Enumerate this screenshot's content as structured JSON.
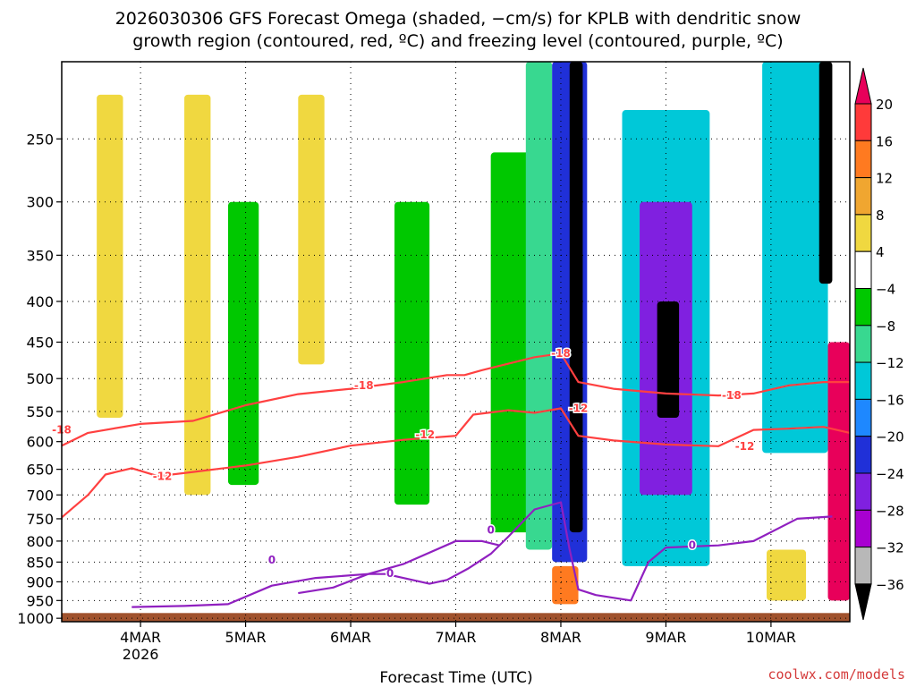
{
  "title": {
    "line1": "2026030306 GFS Forecast Omega (shaded, −cm/s) for KPLB with dendritic snow",
    "line2": "growth region (contoured, red, ºC) and freezing level (contoured, purple, ºC)"
  },
  "credit": "coolwx.com/models",
  "chart_data": {
    "type": "heatmap",
    "xlabel": "Forecast Time (UTC)",
    "ylabel": "",
    "x_ticks": [
      {
        "label": "4MAR",
        "sub": "2026",
        "hour": 0
      },
      {
        "label": "5MAR",
        "sub": "",
        "hour": 24
      },
      {
        "label": "6MAR",
        "sub": "",
        "hour": 48
      },
      {
        "label": "7MAR",
        "sub": "",
        "hour": 72
      },
      {
        "label": "8MAR",
        "sub": "",
        "hour": 96
      },
      {
        "label": "9MAR",
        "sub": "",
        "hour": 120
      },
      {
        "label": "10MAR",
        "sub": "",
        "hour": 144
      }
    ],
    "xlim_hours": [
      -18,
      162
    ],
    "y_ticks": [
      "250",
      "300",
      "350",
      "400",
      "450",
      "500",
      "550",
      "600",
      "650",
      "700",
      "750",
      "800",
      "850",
      "900",
      "950",
      "1000"
    ],
    "y_values": [
      250,
      300,
      350,
      400,
      450,
      500,
      550,
      600,
      650,
      700,
      750,
      800,
      850,
      900,
      950,
      1000
    ],
    "ylim_hPa": [
      200,
      1010
    ],
    "grid": true,
    "colorbar": {
      "labels": [
        "20",
        "16",
        "12",
        "8",
        "4",
        "−4",
        "−8",
        "−12",
        "−16",
        "−20",
        "−24",
        "−28",
        "−32",
        "−36"
      ],
      "colors": [
        "#e8005a",
        "#ff3a3a",
        "#ff7a20",
        "#f0a630",
        "#f0d840",
        "#ffffff",
        "#00c800",
        "#38d890",
        "#00c8d8",
        "#1e88ff",
        "#2030d8",
        "#8020e0",
        "#a800d0",
        "#b8b8b8",
        "#000000"
      ]
    },
    "omega_regions": [
      {
        "t0": -10,
        "t1": -4,
        "p0": 220,
        "p1": 560,
        "level": 1
      },
      {
        "t0": 10,
        "t1": 16,
        "p0": 220,
        "p1": 700,
        "level": 1
      },
      {
        "t0": 36,
        "t1": 42,
        "p0": 220,
        "p1": 480,
        "level": 1
      },
      {
        "t0": 20,
        "t1": 27,
        "p0": 300,
        "p1": 680,
        "level": -1
      },
      {
        "t0": 58,
        "t1": 66,
        "p0": 300,
        "p1": 720,
        "level": -1
      },
      {
        "t0": 80,
        "t1": 92,
        "p0": 260,
        "p1": 780,
        "level": -1
      },
      {
        "t0": 88,
        "t1": 94,
        "p0": 200,
        "p1": 820,
        "level": -2
      },
      {
        "t0": 94,
        "t1": 102,
        "p0": 200,
        "p1": 850,
        "level": -5
      },
      {
        "t0": 98,
        "t1": 101,
        "p0": 200,
        "p1": 780,
        "level": -8
      },
      {
        "t0": 110,
        "t1": 130,
        "p0": 230,
        "p1": 860,
        "level": -3
      },
      {
        "t0": 114,
        "t1": 126,
        "p0": 300,
        "p1": 700,
        "level": -6
      },
      {
        "t0": 118,
        "t1": 123,
        "p0": 400,
        "p1": 560,
        "level": -8
      },
      {
        "t0": 142,
        "t1": 157,
        "p0": 200,
        "p1": 620,
        "level": -3
      },
      {
        "t0": 155,
        "t1": 158,
        "p0": 200,
        "p1": 380,
        "level": -8
      },
      {
        "t0": 157,
        "t1": 162,
        "p0": 450,
        "p1": 950,
        "level": 5
      },
      {
        "t0": 94,
        "t1": 100,
        "p0": 860,
        "p1": 960,
        "level": 3
      },
      {
        "t0": 143,
        "t1": 152,
        "p0": 820,
        "p1": 950,
        "level": 1
      }
    ],
    "contours": [
      {
        "name": "dgz -18",
        "label": "-18",
        "color": "#ff4040",
        "points": [
          [
            -18,
            607
          ],
          [
            -12,
            585
          ],
          [
            0,
            570
          ],
          [
            12,
            565
          ],
          [
            24,
            540
          ],
          [
            36,
            523
          ],
          [
            48,
            515
          ],
          [
            60,
            505
          ],
          [
            70,
            495
          ],
          [
            74,
            495
          ],
          [
            78,
            488
          ],
          [
            90,
            470
          ],
          [
            96,
            465
          ],
          [
            100,
            505
          ],
          [
            108,
            515
          ],
          [
            120,
            522
          ],
          [
            132,
            525
          ],
          [
            140,
            522
          ],
          [
            148,
            510
          ],
          [
            156,
            505
          ],
          [
            162,
            505
          ]
        ],
        "labels": [
          [
            -18,
            580
          ],
          [
            51,
            510
          ],
          [
            96,
            465
          ],
          [
            135,
            525
          ]
        ]
      },
      {
        "name": "dgz -12",
        "label": "-12",
        "color": "#ff4040",
        "points": [
          [
            -18,
            747
          ],
          [
            -12,
            700
          ],
          [
            -8,
            660
          ],
          [
            -2,
            648
          ],
          [
            4,
            663
          ],
          [
            12,
            655
          ],
          [
            24,
            643
          ],
          [
            36,
            627
          ],
          [
            48,
            607
          ],
          [
            60,
            597
          ],
          [
            72,
            590
          ],
          [
            76,
            555
          ],
          [
            84,
            548
          ],
          [
            90,
            552
          ],
          [
            96,
            545
          ],
          [
            100,
            590
          ],
          [
            108,
            598
          ],
          [
            120,
            605
          ],
          [
            132,
            608
          ],
          [
            140,
            580
          ],
          [
            148,
            578
          ],
          [
            156,
            575
          ],
          [
            162,
            585
          ]
        ],
        "labels": [
          [
            5,
            663
          ],
          [
            65,
            588
          ],
          [
            100,
            545
          ],
          [
            138,
            608
          ]
        ]
      },
      {
        "name": "freezing 0",
        "label": "0",
        "color": "#9020c0",
        "points": [
          [
            36,
            930
          ],
          [
            44,
            915
          ],
          [
            52,
            880
          ],
          [
            56,
            880
          ],
          [
            60,
            890
          ],
          [
            66,
            905
          ],
          [
            70,
            895
          ],
          [
            75,
            865
          ],
          [
            80,
            830
          ],
          [
            84,
            790
          ],
          [
            90,
            730
          ],
          [
            96,
            715
          ],
          [
            98,
            820
          ],
          [
            100,
            920
          ],
          [
            104,
            935
          ],
          [
            112,
            950
          ],
          [
            116,
            850
          ],
          [
            120,
            815
          ],
          [
            132,
            810
          ],
          [
            140,
            800
          ],
          [
            150,
            750
          ],
          [
            158,
            745
          ]
        ],
        "labels": [
          [
            57,
            878
          ],
          [
            126,
            810
          ]
        ]
      },
      {
        "name": "freezing 0 lower",
        "label": "0",
        "color": "#9020c0",
        "points": [
          [
            -2,
            968
          ],
          [
            10,
            965
          ],
          [
            20,
            960
          ],
          [
            30,
            910
          ],
          [
            40,
            890
          ],
          [
            52,
            880
          ],
          [
            60,
            855
          ],
          [
            72,
            800
          ],
          [
            78,
            800
          ],
          [
            82,
            810
          ]
        ],
        "labels": [
          [
            30,
            845
          ],
          [
            80,
            775
          ]
        ]
      }
    ],
    "terrain_top_hPa": 985
  }
}
